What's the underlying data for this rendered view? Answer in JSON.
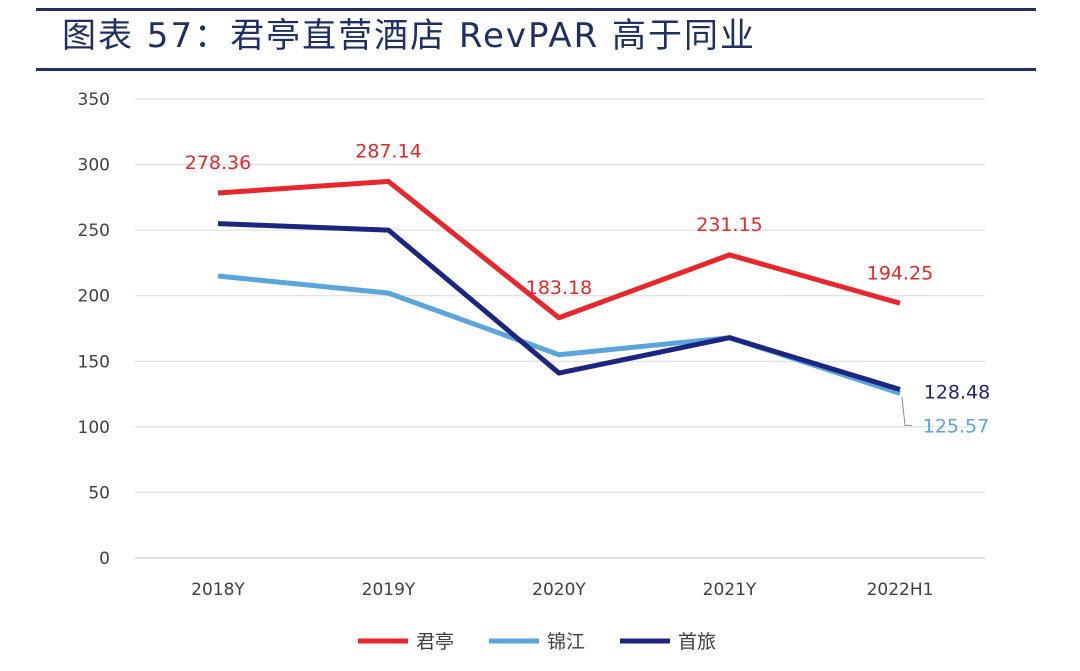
{
  "header": {
    "title": "图表 57：君亭直营酒店 RevPAR 高于同业"
  },
  "chart_data": {
    "type": "line",
    "title": "图表 57：君亭直营酒店 RevPAR 高于同业",
    "xlabel": "",
    "ylabel": "",
    "categories": [
      "2018Y",
      "2019Y",
      "2020Y",
      "2021Y",
      "2022H1"
    ],
    "ylim": [
      0,
      350
    ],
    "yticks": [
      0,
      50,
      100,
      150,
      200,
      250,
      300,
      350
    ],
    "grid": true,
    "legend_position": "bottom",
    "series": [
      {
        "name": "君亭",
        "color": "#e8262b",
        "values": [
          278.36,
          287.14,
          183.18,
          231.15,
          194.25
        ],
        "labels": [
          "278.36",
          "287.14",
          "183.18",
          "231.15",
          "194.25"
        ]
      },
      {
        "name": "锦江",
        "color": "#5aa5dc",
        "values": [
          215,
          202,
          155,
          168,
          125.57
        ],
        "labels": [
          "",
          "",
          "",
          "",
          "125.57"
        ]
      },
      {
        "name": "首旅",
        "color": "#1c2680",
        "values": [
          255,
          250,
          141,
          168,
          128.48
        ],
        "labels": [
          "",
          "",
          "",
          "",
          "128.48"
        ]
      }
    ]
  }
}
